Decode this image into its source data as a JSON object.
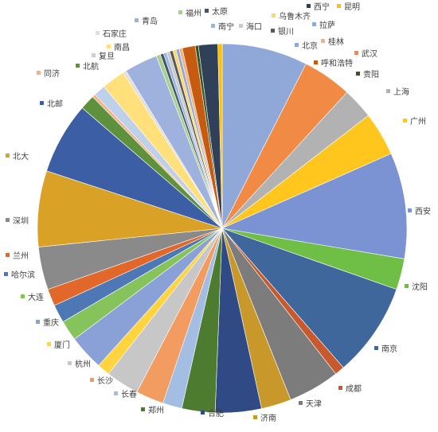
{
  "chart_data": {
    "type": "pie",
    "title": "",
    "legend": "labels-around-slices",
    "start_angle_deg": 0,
    "direction": "clockwise",
    "slices": [
      {
        "label": "北京",
        "value": 8.0,
        "color": "#8fa8d8"
      },
      {
        "label": "武汉",
        "value": 4.6,
        "color": "#f08a44"
      },
      {
        "label": "上海",
        "value": 2.9,
        "color": "#b2b2b2"
      },
      {
        "label": "广州",
        "value": 4.1,
        "color": "#ffc61e"
      },
      {
        "label": "西安",
        "value": 9.9,
        "color": "#7b93d2"
      },
      {
        "label": "沈阳",
        "value": 2.9,
        "color": "#6fbe45"
      },
      {
        "label": "南京",
        "value": 8.8,
        "color": "#3f679c"
      },
      {
        "label": "成都",
        "value": 0.9,
        "color": "#c8592c"
      },
      {
        "label": "天津",
        "value": 4.8,
        "color": "#7c7c7c"
      },
      {
        "label": "济南",
        "value": 2.8,
        "color": "#c9982a"
      },
      {
        "label": "合肥",
        "value": 4.3,
        "color": "#2f4a84"
      },
      {
        "label": "郑州",
        "value": 3.1,
        "color": "#4d7b2f"
      },
      {
        "label": "长春",
        "value": 1.8,
        "color": "#a3bde3"
      },
      {
        "label": "长沙",
        "value": 2.6,
        "color": "#f29c61"
      },
      {
        "label": "杭州",
        "value": 3.1,
        "color": "#c7c7c7"
      },
      {
        "label": "厦门",
        "value": 1.2,
        "color": "#ffd43f"
      },
      {
        "label": "重庆",
        "value": 3.3,
        "color": "#8aa1d8"
      },
      {
        "label": "大连",
        "value": 1.9,
        "color": "#86c35a"
      },
      {
        "label": "哈尔滨",
        "value": 1.7,
        "color": "#4e77b5"
      },
      {
        "label": "兰州",
        "value": 1.6,
        "color": "#e2672a"
      },
      {
        "label": "深圳",
        "value": 4.0,
        "color": "#8a8a8a"
      },
      {
        "label": "北大",
        "value": 7.1,
        "color": "#d9a126"
      },
      {
        "label": "北邮",
        "value": 6.7,
        "color": "#3c5ea5"
      },
      {
        "label": "北航",
        "value": 1.4,
        "color": "#5e913b"
      },
      {
        "label": "同济",
        "value": 0.3,
        "color": "#f4b183"
      },
      {
        "label": "复旦",
        "value": 1.1,
        "color": "#bfd0ea"
      },
      {
        "label": "南昌",
        "value": 2.2,
        "color": "#ffe07a"
      },
      {
        "label": "石家庄",
        "value": 0.3,
        "color": "#dedede"
      },
      {
        "label": "青岛",
        "value": 3.1,
        "color": "#9eb2dd"
      },
      {
        "label": "福州",
        "value": 0.4,
        "color": "#a9d18e"
      },
      {
        "label": "太原",
        "value": 0.3,
        "color": "#44546a"
      },
      {
        "label": "南宁",
        "value": 0.3,
        "color": "#9bb7e0"
      },
      {
        "label": "海口",
        "value": 0.3,
        "color": "#c9c9c9"
      },
      {
        "label": "银川",
        "value": 0.3,
        "color": "#595959"
      },
      {
        "label": "乌鲁木齐",
        "value": 0.3,
        "color": "#ffd966"
      },
      {
        "label": "拉萨",
        "value": 0.3,
        "color": "#8ea9db"
      },
      {
        "label": "桂林",
        "value": 0.3,
        "color": "#f4b183"
      },
      {
        "label": "呼和浩特",
        "value": 1.2,
        "color": "#c55a11"
      },
      {
        "label": "贵阳",
        "value": 0.3,
        "color": "#375623"
      },
      {
        "label": "西宁",
        "value": 1.8,
        "color": "#2f4058"
      },
      {
        "label": "昆明",
        "value": 0.4,
        "color": "#ffc000"
      }
    ]
  },
  "labels": {
    "北京": {
      "label": "北京"
    },
    "武汉": {
      "label": "武汉"
    },
    "上海": {
      "label": "上海"
    },
    "广州": {
      "label": "广州"
    },
    "西安": {
      "label": "西安"
    },
    "沈阳": {
      "label": "沈阳"
    },
    "南京": {
      "label": "南京"
    },
    "成都": {
      "label": "成都"
    },
    "天津": {
      "label": "天津"
    },
    "济南": {
      "label": "济南"
    },
    "合肥": {
      "label": "合肥"
    },
    "郑州": {
      "label": "郑州"
    },
    "长春": {
      "label": "长春"
    },
    "长沙": {
      "label": "长沙"
    },
    "杭州": {
      "label": "杭州"
    },
    "厦门": {
      "label": "厦门"
    },
    "重庆": {
      "label": "重庆"
    },
    "大连": {
      "label": "大连"
    },
    "哈尔滨": {
      "label": "哈尔滨"
    },
    "兰州": {
      "label": "兰州"
    },
    "深圳": {
      "label": "深圳"
    },
    "北大": {
      "label": "北大"
    },
    "北邮": {
      "label": "北邮"
    },
    "北航": {
      "label": "北航"
    },
    "同济": {
      "label": "同济"
    },
    "复旦": {
      "label": "复旦"
    },
    "南昌": {
      "label": "南昌"
    },
    "石家庄": {
      "label": "石家庄"
    },
    "青岛": {
      "label": "青岛"
    },
    "福州": {
      "label": "福州"
    },
    "太原": {
      "label": "太原"
    },
    "南宁": {
      "label": "南宁"
    },
    "海口": {
      "label": "海口"
    },
    "银川": {
      "label": "银川"
    },
    "乌鲁木齐": {
      "label": "乌鲁木齐"
    },
    "拉萨": {
      "label": "拉萨"
    },
    "桂林": {
      "label": "桂林"
    },
    "呼和浩特": {
      "label": "呼和浩特"
    },
    "贵阳": {
      "label": "贵阳"
    },
    "西宁": {
      "label": "西宁"
    },
    "昆明": {
      "label": "昆明"
    }
  }
}
